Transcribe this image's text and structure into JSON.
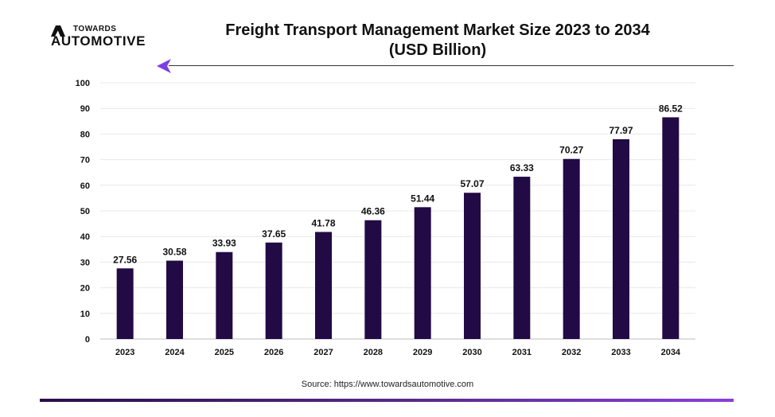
{
  "brand": {
    "top": "TOWARDS",
    "bottom": "AUTOMOTIVE",
    "accent": "#7b3fe4"
  },
  "header": {
    "title_line1": "Freight Transport Management Market Size 2023 to 2034",
    "title_line2": "(USD Billion)"
  },
  "chart_data": {
    "type": "bar",
    "title": "Freight Transport Management Market Size 2023 to 2034 (USD Billion)",
    "xlabel": "",
    "ylabel": "",
    "categories": [
      "2023",
      "2024",
      "2025",
      "2026",
      "2027",
      "2028",
      "2029",
      "2030",
      "2031",
      "2032",
      "2033",
      "2034"
    ],
    "values": [
      27.56,
      30.58,
      33.93,
      37.65,
      41.78,
      46.36,
      51.44,
      57.07,
      63.33,
      70.27,
      77.97,
      86.52
    ],
    "value_labels": [
      "27.56",
      "30.58",
      "33.93",
      "37.65",
      "41.78",
      "46.36",
      "51.44",
      "57.07",
      "63.33",
      "70.27",
      "77.97",
      "86.52"
    ],
    "ylim": [
      0,
      100
    ],
    "yticks": [
      0,
      10,
      20,
      30,
      40,
      50,
      60,
      70,
      80,
      90,
      100
    ],
    "grid": true,
    "bar_color": "#220a45",
    "grid_color": "#e8e8e8"
  },
  "footer": {
    "source": "Source: https://www.towardsautomotive.com"
  }
}
